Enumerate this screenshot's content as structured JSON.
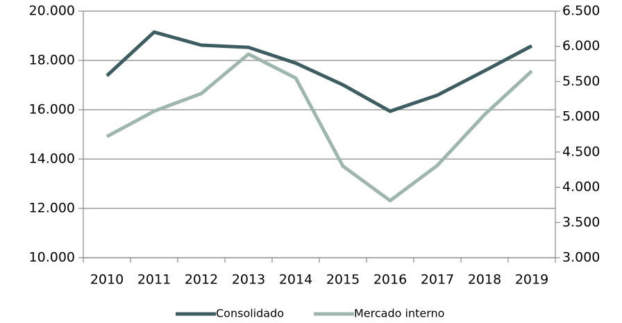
{
  "chart_data": {
    "type": "line",
    "categories": [
      "2010",
      "2011",
      "2012",
      "2013",
      "2014",
      "2015",
      "2016",
      "2017",
      "2018",
      "2019"
    ],
    "series": [
      {
        "name": "Consolidado",
        "color": "#3e5d60",
        "values": [
          17380,
          19150,
          18620,
          18530,
          17890,
          17010,
          15940,
          16590,
          17580,
          18590
        ]
      },
      {
        "name": "Mercado interno",
        "color": "#9fb6ae",
        "axis": "y2",
        "values": [
          4720,
          5080,
          5330,
          5890,
          5550,
          4300,
          3810,
          4310,
          5030,
          5650
        ]
      }
    ],
    "ylim": [
      10000,
      20000
    ],
    "yticks": [
      {
        "value": 10000,
        "label": "10.000"
      },
      {
        "value": 12000,
        "label": "12.000"
      },
      {
        "value": 14000,
        "label": "14.000"
      },
      {
        "value": 16000,
        "label": "16.000"
      },
      {
        "value": 18000,
        "label": "18.000"
      },
      {
        "value": 20000,
        "label": "20.000"
      }
    ],
    "y2lim": [
      3000,
      6500
    ],
    "y2ticks": [
      {
        "value": 3000,
        "label": "3.000"
      },
      {
        "value": 3500,
        "label": "3.500"
      },
      {
        "value": 4000,
        "label": "4.000"
      },
      {
        "value": 4500,
        "label": "4.500"
      },
      {
        "value": 5000,
        "label": "5.000"
      },
      {
        "value": 5500,
        "label": "5.500"
      },
      {
        "value": 6000,
        "label": "6.000"
      },
      {
        "value": 6500,
        "label": "6.500"
      }
    ],
    "grid": true,
    "legend": "bottom"
  }
}
